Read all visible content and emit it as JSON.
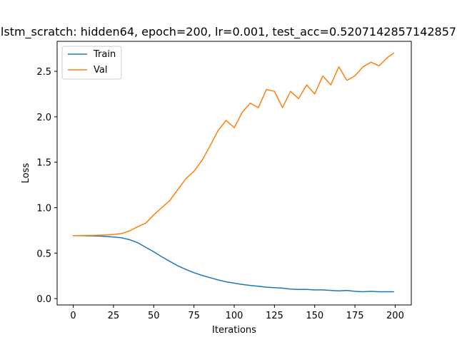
{
  "chart_data": {
    "type": "line",
    "title": "lstm_scratch: hidden64, epoch=200, lr=0.001, test_acc=0.5207142857142857",
    "xlabel": "Iterations",
    "ylabel": "Loss",
    "xlim": [
      -10,
      210
    ],
    "ylim": [
      -0.07,
      2.83
    ],
    "xticks": [
      0,
      25,
      50,
      75,
      100,
      125,
      150,
      175,
      200
    ],
    "yticks": [
      0.0,
      0.5,
      1.0,
      1.5,
      2.0,
      2.5
    ],
    "xtick_labels": [
      "0",
      "25",
      "50",
      "75",
      "100",
      "125",
      "150",
      "175",
      "200"
    ],
    "ytick_labels": [
      "0.0",
      "0.5",
      "1.0",
      "1.5",
      "2.0",
      "2.5"
    ],
    "grid": false,
    "legend_position": "top-left",
    "x": [
      0,
      5,
      10,
      15,
      20,
      25,
      30,
      35,
      40,
      45,
      50,
      55,
      60,
      65,
      70,
      75,
      80,
      85,
      90,
      95,
      100,
      105,
      110,
      115,
      120,
      125,
      130,
      135,
      140,
      145,
      150,
      155,
      160,
      165,
      170,
      175,
      180,
      185,
      190,
      195,
      199
    ],
    "series": [
      {
        "name": "Train",
        "color": "#1f77b4",
        "values": [
          0.693,
          0.692,
          0.69,
          0.688,
          0.684,
          0.678,
          0.668,
          0.648,
          0.615,
          0.565,
          0.515,
          0.46,
          0.41,
          0.36,
          0.32,
          0.285,
          0.255,
          0.23,
          0.205,
          0.185,
          0.17,
          0.155,
          0.145,
          0.135,
          0.125,
          0.12,
          0.115,
          0.105,
          0.1,
          0.1,
          0.095,
          0.095,
          0.09,
          0.085,
          0.09,
          0.08,
          0.075,
          0.08,
          0.075,
          0.075,
          0.075
        ]
      },
      {
        "name": "Val",
        "color": "#ff7f0e",
        "values": [
          0.693,
          0.694,
          0.695,
          0.697,
          0.7,
          0.705,
          0.715,
          0.745,
          0.79,
          0.83,
          0.92,
          1.0,
          1.08,
          1.2,
          1.32,
          1.4,
          1.52,
          1.68,
          1.85,
          1.96,
          1.88,
          2.05,
          2.15,
          2.1,
          2.3,
          2.28,
          2.1,
          2.28,
          2.2,
          2.35,
          2.25,
          2.45,
          2.35,
          2.55,
          2.4,
          2.45,
          2.55,
          2.6,
          2.56,
          2.65,
          2.7
        ]
      }
    ]
  }
}
